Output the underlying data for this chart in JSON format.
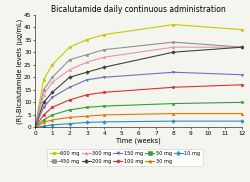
{
  "title": "Bicalutamide daily continuous administration",
  "xlabel": "Time (weeks)",
  "ylabel": "(R)-Bicalutamide levels (μg/mL)",
  "xlim": [
    0,
    12
  ],
  "ylim": [
    0,
    45
  ],
  "xticks": [
    0,
    1,
    2,
    3,
    4,
    5,
    6,
    7,
    8,
    9,
    10,
    11,
    12
  ],
  "yticks": [
    0,
    5,
    10,
    15,
    20,
    25,
    30,
    35,
    40,
    45
  ],
  "weeks": [
    0,
    0.5,
    1,
    2,
    3,
    4,
    8,
    12
  ],
  "series": [
    {
      "label": "600 mg",
      "color": "#c8c800",
      "marker": "o",
      "values": [
        0,
        19,
        25,
        32,
        35,
        37,
        41,
        39
      ]
    },
    {
      "label": "450 mg",
      "color": "#909090",
      "marker": "s",
      "values": [
        0,
        15,
        20,
        27,
        29,
        31,
        34,
        32
      ]
    },
    {
      "label": "300 mg",
      "color": "#f090b0",
      "marker": "^",
      "values": [
        0,
        13,
        18,
        23,
        26,
        28,
        32,
        32
      ]
    },
    {
      "label": "200 mg",
      "color": "#404040",
      "marker": "D",
      "values": [
        0,
        10,
        14,
        20,
        22,
        24,
        30,
        32
      ]
    },
    {
      "label": "150 mg",
      "color": "#7070c0",
      "marker": "v",
      "values": [
        0,
        8,
        12,
        16,
        19,
        20,
        22,
        21
      ]
    },
    {
      "label": "100 mg",
      "color": "#e03030",
      "marker": "o",
      "values": [
        0,
        5,
        8,
        11,
        13,
        14,
        16,
        17
      ]
    },
    {
      "label": "50 mg",
      "color": "#30a030",
      "marker": "s",
      "values": [
        0,
        3,
        5,
        7,
        8,
        8.5,
        9.5,
        10
      ]
    },
    {
      "label": "30 mg",
      "color": "#e07800",
      "marker": "^",
      "values": [
        0,
        2,
        3,
        4,
        4.5,
        5,
        5.5,
        5.5
      ]
    },
    {
      "label": "10 mg",
      "color": "#3090c0",
      "marker": "D",
      "values": [
        0,
        0.5,
        1,
        1.5,
        2,
        2.2,
        2.5,
        2.5
      ]
    }
  ],
  "background_color": "#f5f5f0",
  "title_fontsize": 5.5,
  "axis_fontsize": 4.8,
  "tick_fontsize": 4.2,
  "legend_fontsize": 3.6
}
